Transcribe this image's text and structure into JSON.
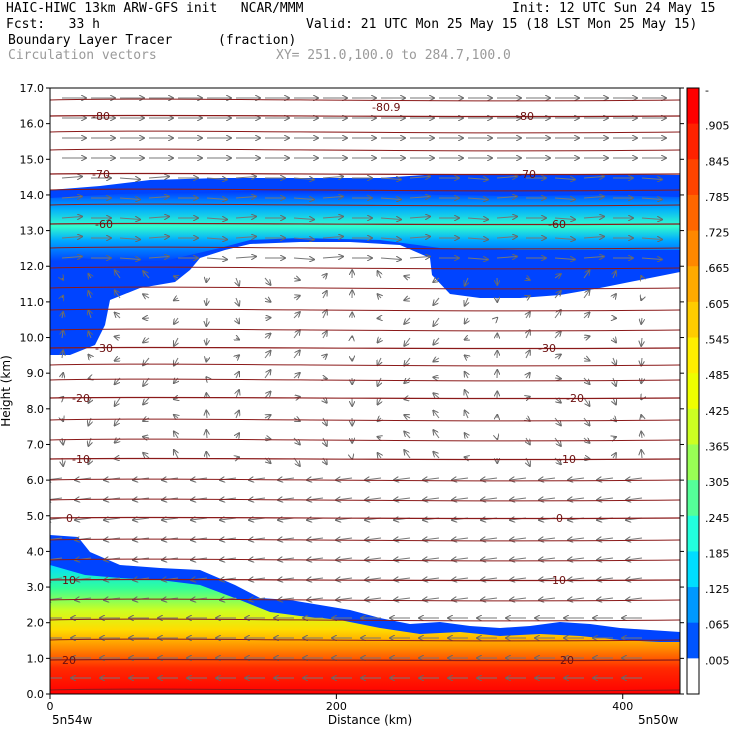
{
  "header": {
    "line1_left": "HAIC-HIWC 13km ARW-GFS init   NCAR/MMM",
    "line1_right": "Init: 12 UTC Sun 24 May 15",
    "line2_left": "Fcst:   33 h",
    "line2_right": "Valid: 21 UTC Mon 25 May 15 (18 LST Mon 25 May 15)",
    "line3_field": "Boundary Layer Tracer",
    "line3_units": "(fraction)",
    "line4_field": "Circulation vectors",
    "line4_xy": "XY= 251.0,100.0 to 284.7,100.0"
  },
  "chart_data": {
    "type": "heatmap",
    "xlabel": "Distance (km)",
    "ylabel": "Height (km)",
    "xlim": [
      0,
      440
    ],
    "ylim": [
      0,
      17
    ],
    "x_ticks": [
      "0",
      "200",
      "400"
    ],
    "y_ticks": [
      "0.0",
      "1.0",
      "2.0",
      "3.0",
      "4.0",
      "5.0",
      "6.0",
      "7.0",
      "8.0",
      "9.0",
      "10.0",
      "11.0",
      "12.0",
      "13.0",
      "14.0",
      "15.0",
      "16.0",
      "17.0"
    ],
    "left_endpoint": "5n54w",
    "right_endpoint": "5n50w",
    "colorbar": {
      "labels": [
        "-",
        ".905",
        ".845",
        ".785",
        ".725",
        ".665",
        ".605",
        ".545",
        ".485",
        ".425",
        ".365",
        ".305",
        ".245",
        ".185",
        ".125",
        ".065",
        ".005"
      ],
      "colors": [
        "#ff0000",
        "#ff2200",
        "#ff4400",
        "#ff6600",
        "#ff8800",
        "#ffaa00",
        "#ffcc00",
        "#ffee00",
        "#eeff00",
        "#ccff22",
        "#99ff55",
        "#55ff99",
        "#22ffdd",
        "#00ddff",
        "#0099ff",
        "#0055ff",
        "#ffffff"
      ]
    },
    "temperature_contours": [
      {
        "value": 20,
        "label": "20"
      },
      {
        "value": 10,
        "label": "10"
      },
      {
        "value": 0,
        "label": "0"
      },
      {
        "value": -10,
        "label": "-10"
      },
      {
        "value": -20,
        "label": "-20"
      },
      {
        "value": -30,
        "label": "-30"
      },
      {
        "value": -60,
        "label": "-60"
      },
      {
        "value": -70,
        "label": "-70"
      },
      {
        "value": -80,
        "label": "-80"
      },
      {
        "value": -80.9,
        "label": "-80.9"
      }
    ],
    "grid": false,
    "legend": "colorbar-right"
  }
}
